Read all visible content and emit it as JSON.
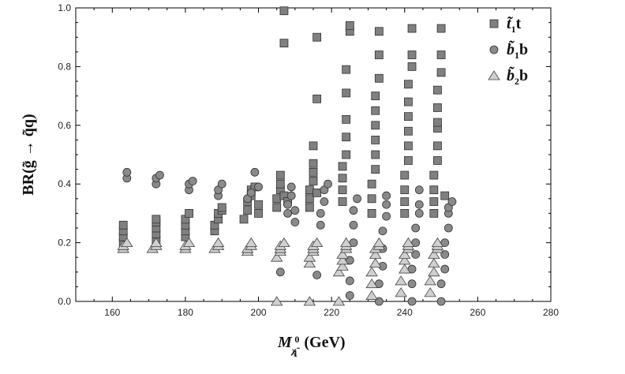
{
  "chart_data": {
    "type": "scatter",
    "xlabel_main": "M",
    "xlabel_sub": "χ̃",
    "xlabel_sup": "0",
    "xlabel_subsub": "1",
    "xlabel_unit": "(GeV)",
    "ylabel": "BR(g̃ → q̃q)",
    "xlim": [
      150,
      280
    ],
    "ylim": [
      0.0,
      1.0
    ],
    "xticks": [
      "160",
      "180",
      "200",
      "220",
      "240",
      "260",
      "280"
    ],
    "yticks": [
      "0.0",
      "0.2",
      "0.4",
      "0.6",
      "0.8",
      "1.0"
    ],
    "legend": [
      {
        "marker": "square",
        "label_main": "t̃",
        "label_sub": "1",
        "label_tail": "t",
        "fill": "#808080"
      },
      {
        "marker": "circle",
        "label_main": "b̃",
        "label_sub": "1",
        "label_tail": "b",
        "fill": "#8a8a8a"
      },
      {
        "marker": "triangle",
        "label_main": "b̃",
        "label_sub": "2",
        "label_tail": "b",
        "fill": "#cfcfcf"
      }
    ],
    "series": [
      {
        "marker": "square",
        "fill": "#808080",
        "points": [
          [
            163,
            0.2
          ],
          [
            163,
            0.22
          ],
          [
            163,
            0.24
          ],
          [
            163,
            0.26
          ],
          [
            172,
            0.21
          ],
          [
            172,
            0.23
          ],
          [
            172,
            0.25
          ],
          [
            172,
            0.27
          ],
          [
            172,
            0.28
          ],
          [
            180,
            0.22
          ],
          [
            180,
            0.24
          ],
          [
            180,
            0.26
          ],
          [
            180,
            0.28
          ],
          [
            181,
            0.3
          ],
          [
            188,
            0.24
          ],
          [
            188,
            0.26
          ],
          [
            189,
            0.28
          ],
          [
            189,
            0.3
          ],
          [
            190,
            0.31
          ],
          [
            190,
            0.32
          ],
          [
            196,
            0.28
          ],
          [
            197,
            0.31
          ],
          [
            197,
            0.34
          ],
          [
            198,
            0.36
          ],
          [
            198,
            0.38
          ],
          [
            199,
            0.39
          ],
          [
            200,
            0.33
          ],
          [
            200,
            0.3
          ],
          [
            205,
            0.32
          ],
          [
            205,
            0.35
          ],
          [
            206,
            0.38
          ],
          [
            206,
            0.4
          ],
          [
            206,
            0.43
          ],
          [
            207,
            0.36
          ],
          [
            207,
            0.88
          ],
          [
            207,
            0.99
          ],
          [
            208,
            0.34
          ],
          [
            214,
            0.32
          ],
          [
            214,
            0.35
          ],
          [
            214,
            0.38
          ],
          [
            215,
            0.41
          ],
          [
            215,
            0.44
          ],
          [
            215,
            0.47
          ],
          [
            215,
            0.53
          ],
          [
            216,
            0.69
          ],
          [
            216,
            0.9
          ],
          [
            216,
            0.37
          ],
          [
            223,
            0.34
          ],
          [
            223,
            0.38
          ],
          [
            223,
            0.42
          ],
          [
            223,
            0.46
          ],
          [
            224,
            0.5
          ],
          [
            224,
            0.56
          ],
          [
            224,
            0.62
          ],
          [
            224,
            0.71
          ],
          [
            224,
            0.79
          ],
          [
            225,
            0.92
          ],
          [
            225,
            0.94
          ],
          [
            231,
            0.3
          ],
          [
            231,
            0.35
          ],
          [
            231,
            0.4
          ],
          [
            232,
            0.45
          ],
          [
            232,
            0.5
          ],
          [
            232,
            0.55
          ],
          [
            232,
            0.6
          ],
          [
            232,
            0.65
          ],
          [
            232,
            0.7
          ],
          [
            233,
            0.76
          ],
          [
            233,
            0.84
          ],
          [
            233,
            0.92
          ],
          [
            240,
            0.3
          ],
          [
            240,
            0.34
          ],
          [
            240,
            0.38
          ],
          [
            240,
            0.43
          ],
          [
            241,
            0.48
          ],
          [
            241,
            0.53
          ],
          [
            241,
            0.58
          ],
          [
            241,
            0.63
          ],
          [
            241,
            0.68
          ],
          [
            241,
            0.74
          ],
          [
            242,
            0.8
          ],
          [
            242,
            0.84
          ],
          [
            242,
            0.93
          ],
          [
            248,
            0.3
          ],
          [
            248,
            0.34
          ],
          [
            248,
            0.38
          ],
          [
            248,
            0.43
          ],
          [
            249,
            0.48
          ],
          [
            249,
            0.53
          ],
          [
            249,
            0.59
          ],
          [
            249,
            0.61
          ],
          [
            249,
            0.66
          ],
          [
            249,
            0.72
          ],
          [
            250,
            0.78
          ],
          [
            250,
            0.84
          ],
          [
            250,
            0.93
          ],
          [
            251,
            0.36
          ]
        ]
      },
      {
        "marker": "circle",
        "fill": "#8a8a8a",
        "points": [
          [
            164,
            0.42
          ],
          [
            164,
            0.44
          ],
          [
            172,
            0.4
          ],
          [
            172,
            0.42
          ],
          [
            173,
            0.43
          ],
          [
            181,
            0.38
          ],
          [
            181,
            0.4
          ],
          [
            182,
            0.41
          ],
          [
            189,
            0.36
          ],
          [
            189,
            0.38
          ],
          [
            190,
            0.4
          ],
          [
            197,
            0.35
          ],
          [
            198,
            0.37
          ],
          [
            199,
            0.44
          ],
          [
            200,
            0.39
          ],
          [
            206,
            0.1
          ],
          [
            208,
            0.3
          ],
          [
            208,
            0.33
          ],
          [
            209,
            0.36
          ],
          [
            209,
            0.39
          ],
          [
            210,
            0.27
          ],
          [
            210,
            0.31
          ],
          [
            216,
            0.09
          ],
          [
            217,
            0.26
          ],
          [
            217,
            0.3
          ],
          [
            218,
            0.34
          ],
          [
            218,
            0.38
          ],
          [
            219,
            0.4
          ],
          [
            225,
            0.02
          ],
          [
            225,
            0.07
          ],
          [
            225,
            0.14
          ],
          [
            226,
            0.2
          ],
          [
            226,
            0.26
          ],
          [
            226,
            0.31
          ],
          [
            227,
            0.35
          ],
          [
            233,
            0.0
          ],
          [
            233,
            0.06
          ],
          [
            234,
            0.12
          ],
          [
            234,
            0.18
          ],
          [
            234,
            0.24
          ],
          [
            235,
            0.29
          ],
          [
            235,
            0.33
          ],
          [
            235,
            0.36
          ],
          [
            242,
            0.0
          ],
          [
            242,
            0.06
          ],
          [
            242,
            0.11
          ],
          [
            243,
            0.16
          ],
          [
            243,
            0.2
          ],
          [
            243,
            0.25
          ],
          [
            244,
            0.3
          ],
          [
            244,
            0.33
          ],
          [
            244,
            0.38
          ],
          [
            250,
            0.0
          ],
          [
            250,
            0.06
          ],
          [
            251,
            0.11
          ],
          [
            251,
            0.16
          ],
          [
            251,
            0.2
          ],
          [
            252,
            0.25
          ],
          [
            252,
            0.3
          ],
          [
            252,
            0.32
          ],
          [
            253,
            0.34
          ]
        ]
      },
      {
        "marker": "triangle",
        "fill": "#cfcfcf",
        "points": [
          [
            163,
            0.18
          ],
          [
            163,
            0.19
          ],
          [
            164,
            0.2
          ],
          [
            171,
            0.18
          ],
          [
            172,
            0.19
          ],
          [
            172,
            0.2
          ],
          [
            180,
            0.18
          ],
          [
            180,
            0.19
          ],
          [
            181,
            0.2
          ],
          [
            188,
            0.18
          ],
          [
            189,
            0.19
          ],
          [
            189,
            0.2
          ],
          [
            197,
            0.17
          ],
          [
            197,
            0.18
          ],
          [
            198,
            0.19
          ],
          [
            198,
            0.2
          ],
          [
            205,
            0.0
          ],
          [
            205,
            0.15
          ],
          [
            206,
            0.17
          ],
          [
            206,
            0.18
          ],
          [
            206,
            0.19
          ],
          [
            207,
            0.2
          ],
          [
            214,
            0.0
          ],
          [
            214,
            0.13
          ],
          [
            214,
            0.15
          ],
          [
            215,
            0.17
          ],
          [
            215,
            0.18
          ],
          [
            215,
            0.19
          ],
          [
            216,
            0.2
          ],
          [
            222,
            0.0
          ],
          [
            222,
            0.1
          ],
          [
            223,
            0.12
          ],
          [
            223,
            0.14
          ],
          [
            223,
            0.16
          ],
          [
            224,
            0.18
          ],
          [
            224,
            0.19
          ],
          [
            224,
            0.2
          ],
          [
            231,
            0.02
          ],
          [
            231,
            0.06
          ],
          [
            231,
            0.1
          ],
          [
            232,
            0.13
          ],
          [
            232,
            0.16
          ],
          [
            232,
            0.18
          ],
          [
            233,
            0.19
          ],
          [
            233,
            0.2
          ],
          [
            239,
            0.03
          ],
          [
            239,
            0.07
          ],
          [
            240,
            0.11
          ],
          [
            240,
            0.14
          ],
          [
            240,
            0.16
          ],
          [
            241,
            0.18
          ],
          [
            241,
            0.19
          ],
          [
            241,
            0.2
          ],
          [
            247,
            0.03
          ],
          [
            247,
            0.07
          ],
          [
            248,
            0.1
          ],
          [
            248,
            0.13
          ],
          [
            248,
            0.16
          ],
          [
            249,
            0.18
          ],
          [
            249,
            0.19
          ],
          [
            249,
            0.2
          ]
        ]
      }
    ]
  }
}
